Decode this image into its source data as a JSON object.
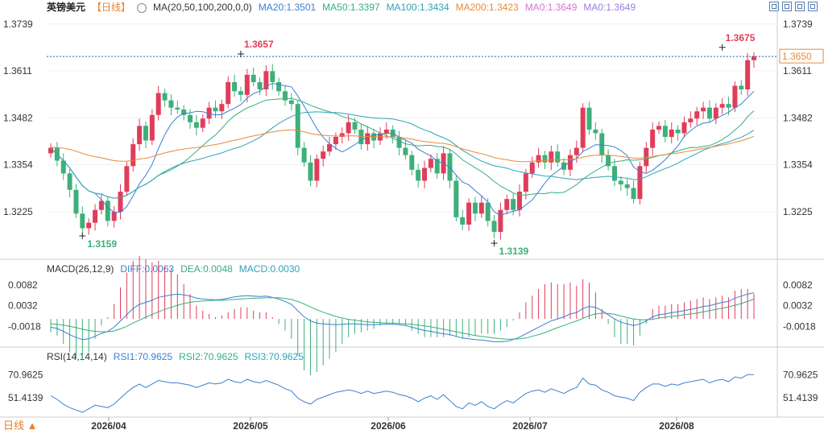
{
  "header": {
    "symbol": "英镑美元",
    "period": "【日线】",
    "ma_label": "MA(20,50,100,200,0,0)",
    "ma_values": [
      {
        "text": "MA20:1.3501",
        "color": "#3b7fd0"
      },
      {
        "text": "MA50:1.3397",
        "color": "#36b07a"
      },
      {
        "text": "MA100:1.3434",
        "color": "#2fa3b5"
      },
      {
        "text": "MA200:1.3423",
        "color": "#e88a3a"
      },
      {
        "text": "MA0:1.3649",
        "color": "#d474d4"
      },
      {
        "text": "MA0:1.3649",
        "color": "#9a7ee0"
      }
    ]
  },
  "macd_header": {
    "label": "MACD(26,12,9)",
    "diff": "DIFF:0.0063",
    "dea": "DEA:0.0048",
    "macd": "MACD:0.0030"
  },
  "rsi_header": {
    "label": "RSI(14,14,14)",
    "rsi1": "RSI1:70.9625",
    "rsi2": "RSI2:70.9625",
    "rsi3": "RSI3:70.9625"
  },
  "footer": {
    "period_button": "日线 ▲"
  },
  "chart_data": {
    "type": "candlestick",
    "price_ticks": [
      "1.3739",
      "1.3611",
      "1.3482",
      "1.3354",
      "1.3225"
    ],
    "price_tick_values": [
      1.3739,
      1.3611,
      1.3482,
      1.3354,
      1.3225
    ],
    "price_range": [
      1.3095,
      1.3765
    ],
    "current_price": "1.3650",
    "current_price_value": 1.365,
    "annotations": [
      {
        "text": "1.3657",
        "value": 1.3657,
        "type": "high"
      },
      {
        "text": "1.3675",
        "value": 1.3675,
        "type": "high"
      },
      {
        "text": "1.3159",
        "value": 1.3159,
        "type": "low"
      },
      {
        "text": "1.3139",
        "value": 1.3139,
        "type": "low"
      }
    ],
    "x_labels": [
      "2026/04",
      "2026/05",
      "2026/06",
      "2026/07",
      "2026/08"
    ],
    "closes": [
      1.34,
      1.3365,
      1.333,
      1.3285,
      1.322,
      1.318,
      1.3195,
      1.323,
      1.3255,
      1.32,
      1.3225,
      1.328,
      1.335,
      1.341,
      1.346,
      1.342,
      1.349,
      1.355,
      1.353,
      1.351,
      1.3505,
      1.349,
      1.347,
      1.3455,
      1.348,
      1.351,
      1.35,
      1.352,
      1.358,
      1.3555,
      1.3545,
      1.36,
      1.358,
      1.356,
      1.361,
      1.358,
      1.3555,
      1.353,
      1.352,
      1.34,
      1.336,
      1.331,
      1.337,
      1.339,
      1.341,
      1.343,
      1.344,
      1.347,
      1.345,
      1.341,
      1.344,
      1.342,
      1.344,
      1.345,
      1.343,
      1.34,
      1.338,
      1.334,
      1.331,
      1.3345,
      1.337,
      1.333,
      1.3385,
      1.331,
      1.321,
      1.319,
      1.325,
      1.322,
      1.325,
      1.32,
      1.317,
      1.323,
      1.326,
      1.323,
      1.328,
      1.333,
      1.336,
      1.338,
      1.336,
      1.339,
      1.336,
      1.334,
      1.338,
      1.34,
      1.351,
      1.345,
      1.344,
      1.338,
      1.335,
      1.331,
      1.33,
      1.329,
      1.326,
      1.335,
      1.34,
      1.345,
      1.346,
      1.343,
      1.345,
      1.344,
      1.347,
      1.348,
      1.35,
      1.351,
      1.348,
      1.351,
      1.352,
      1.351,
      1.357,
      1.356,
      1.364,
      1.365
    ],
    "macd": {
      "ticks": [
        "0.0082",
        "0.0032",
        "-0.0018"
      ],
      "tick_values": [
        0.0082,
        0.0032,
        -0.0018
      ],
      "range": [
        -0.0062,
        0.0105
      ],
      "diff": [
        -0.002,
        -0.0023,
        -0.003,
        -0.0038,
        -0.0045,
        -0.005,
        -0.0048,
        -0.0042,
        -0.0035,
        -0.003,
        -0.002,
        -0.0005,
        0.001,
        0.0025,
        0.0035,
        0.004,
        0.0045,
        0.0052,
        0.0055,
        0.0058,
        0.006,
        0.0058,
        0.0055,
        0.005,
        0.0048,
        0.0047,
        0.0046,
        0.0047,
        0.005,
        0.0053,
        0.0055,
        0.0056,
        0.0055,
        0.0054,
        0.0055,
        0.0052,
        0.0048,
        0.0042,
        0.0035,
        0.002,
        0.0005,
        -0.0005,
        -0.001,
        -0.0012,
        -0.0013,
        -0.0014,
        -0.0013,
        -0.0012,
        -0.0012,
        -0.0013,
        -0.0014,
        -0.0014,
        -0.0013,
        -0.0013,
        -0.0013,
        -0.0014,
        -0.0016,
        -0.002,
        -0.0024,
        -0.0028,
        -0.003,
        -0.0033,
        -0.0036,
        -0.0038,
        -0.0042,
        -0.0046,
        -0.0048,
        -0.005,
        -0.0051,
        -0.0053,
        -0.0055,
        -0.0055,
        -0.0054,
        -0.005,
        -0.0044,
        -0.0036,
        -0.0028,
        -0.002,
        -0.0012,
        -0.0005,
        0.0,
        0.0005,
        0.0012,
        0.0015,
        0.0025,
        0.003,
        0.0028,
        0.002,
        0.001,
        0.0,
        -0.0008,
        -0.0012,
        -0.0016,
        -0.0012,
        -0.0005,
        0.0005,
        0.001,
        0.0012,
        0.0015,
        0.0017,
        0.002,
        0.0023,
        0.0026,
        0.003,
        0.0032,
        0.0036,
        0.004,
        0.0042,
        0.005,
        0.0055,
        0.006,
        0.0063
      ],
      "dea": [
        -0.0012,
        -0.0013,
        -0.0015,
        -0.0018,
        -0.0021,
        -0.0025,
        -0.0028,
        -0.003,
        -0.0031,
        -0.0031,
        -0.0029,
        -0.0024,
        -0.0018,
        -0.001,
        -0.0003,
        0.0004,
        0.0011,
        0.0017,
        0.0023,
        0.0028,
        0.0033,
        0.0037,
        0.004,
        0.0042,
        0.0043,
        0.0044,
        0.0045,
        0.0045,
        0.0046,
        0.0047,
        0.0048,
        0.0049,
        0.005,
        0.005,
        0.0051,
        0.0051,
        0.0051,
        0.0049,
        0.0047,
        0.0042,
        0.0036,
        0.0029,
        0.0022,
        0.0016,
        0.0011,
        0.0006,
        0.0002,
        -0.0001,
        -0.0003,
        -0.0005,
        -0.0007,
        -0.0008,
        -0.0009,
        -0.001,
        -0.001,
        -0.0011,
        -0.0012,
        -0.0013,
        -0.0015,
        -0.0017,
        -0.0019,
        -0.0022,
        -0.0025,
        -0.0028,
        -0.0031,
        -0.0034,
        -0.0037,
        -0.004,
        -0.0042,
        -0.0044,
        -0.0046,
        -0.0048,
        -0.0049,
        -0.0049,
        -0.0048,
        -0.0046,
        -0.0042,
        -0.0038,
        -0.0033,
        -0.0027,
        -0.0021,
        -0.0016,
        -0.001,
        -0.0005,
        0.0001,
        0.0008,
        0.0012,
        0.0014,
        0.0013,
        0.0011,
        0.0007,
        0.0003,
        0.0,
        -0.0002,
        -0.0002,
        -0.0001,
        0.0002,
        0.0004,
        0.0006,
        0.0008,
        0.001,
        0.0012,
        0.0014,
        0.0017,
        0.002,
        0.0023,
        0.0026,
        0.0029,
        0.0033,
        0.0037,
        0.0042,
        0.0048
      ]
    },
    "rsi": {
      "ticks": [
        "70.9625",
        "51.4139"
      ],
      "tick_values": [
        70.9625,
        51.4139
      ],
      "range": [
        35,
        80
      ],
      "values": [
        53,
        50,
        46,
        43,
        41,
        39,
        42,
        45,
        44,
        43,
        46,
        51,
        56,
        60,
        63,
        60,
        63,
        66,
        65,
        64,
        64,
        63,
        62,
        60,
        62,
        64,
        63,
        64,
        67,
        65,
        64,
        67,
        65,
        64,
        66,
        64,
        62,
        59,
        57,
        51,
        48,
        46,
        50,
        52,
        54,
        56,
        57,
        58,
        57,
        55,
        57,
        55,
        56,
        57,
        56,
        54,
        53,
        51,
        48,
        51,
        53,
        50,
        54,
        49,
        44,
        42,
        47,
        45,
        48,
        44,
        42,
        46,
        49,
        47,
        51,
        55,
        57,
        58,
        56,
        59,
        57,
        55,
        58,
        60,
        68,
        63,
        62,
        58,
        56,
        53,
        52,
        51,
        49,
        56,
        60,
        63,
        63,
        61,
        63,
        62,
        64,
        65,
        66,
        67,
        64,
        66,
        67,
        65,
        69,
        68,
        71,
        71
      ]
    }
  }
}
